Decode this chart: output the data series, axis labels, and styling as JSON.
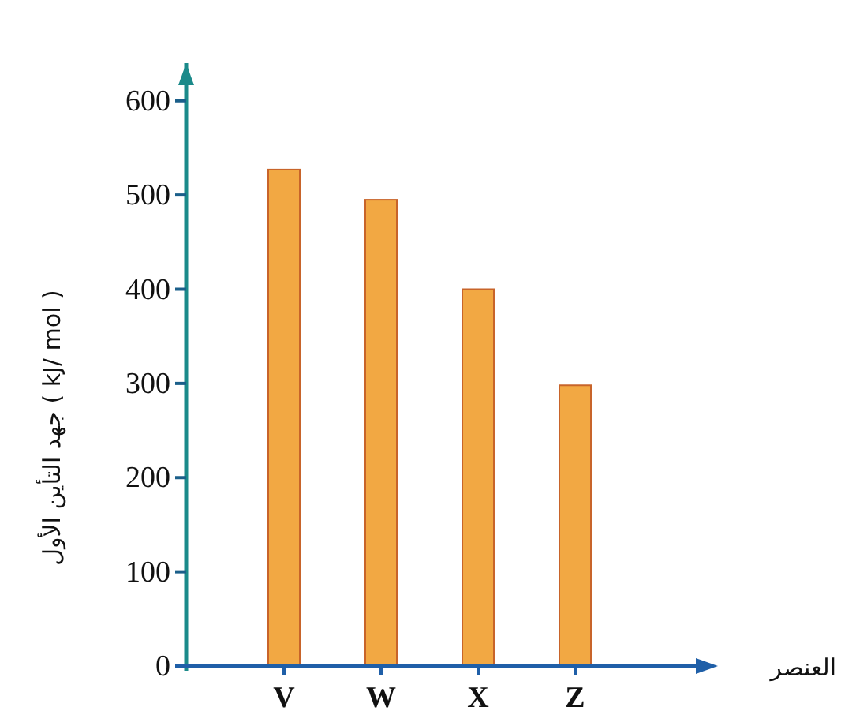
{
  "chart_data": {
    "type": "bar",
    "xlabel": "العنصر",
    "ylabel": "جهد التأين الأول ( kJ/ mol )",
    "categories": [
      "V",
      "W",
      "X",
      "Z"
    ],
    "values": [
      527,
      495,
      400,
      298
    ],
    "color": "#f2a843",
    "ylim": [
      0,
      640
    ],
    "yticks": [
      0,
      100,
      200,
      300,
      400,
      500,
      600
    ],
    "grid": false
  }
}
